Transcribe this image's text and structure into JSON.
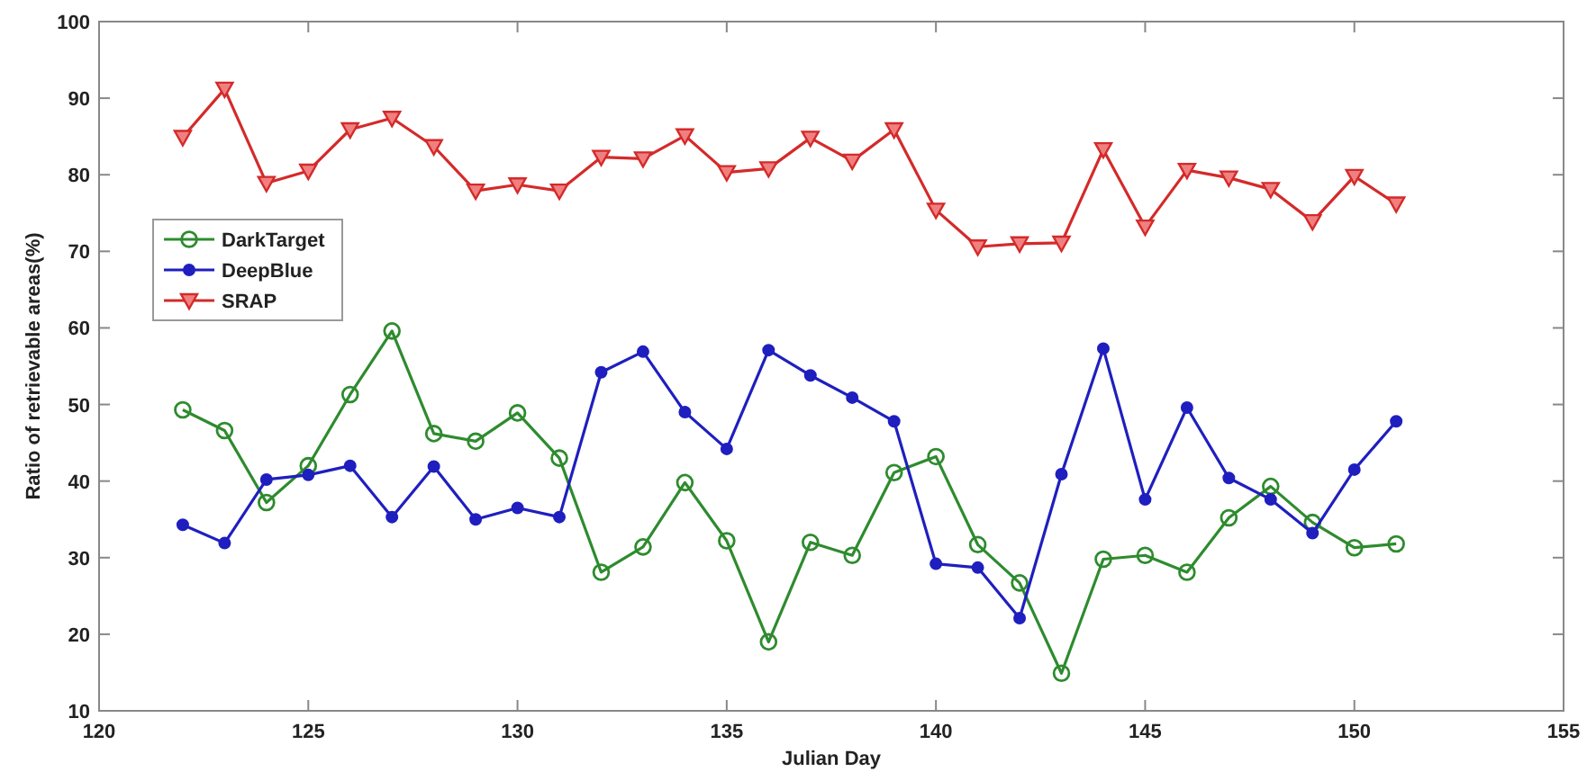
{
  "chart_data": {
    "type": "line",
    "xlabel": "Julian Day",
    "ylabel": "Ratio of retrievable areas(%)",
    "x": [
      122,
      123,
      124,
      125,
      126,
      127,
      128,
      129,
      130,
      131,
      132,
      133,
      134,
      135,
      136,
      137,
      138,
      139,
      140,
      141,
      142,
      143,
      144,
      145,
      146,
      147,
      148,
      149,
      150,
      151
    ],
    "xlim": [
      120,
      155
    ],
    "xticks": [
      120,
      125,
      130,
      135,
      140,
      145,
      150,
      155
    ],
    "ylim": [
      10,
      100
    ],
    "yticks": [
      10,
      20,
      30,
      40,
      50,
      60,
      70,
      80,
      90,
      100
    ],
    "grid": false,
    "legend": "left",
    "series": [
      {
        "name": "DarkTarget",
        "color": "#2e8b2e",
        "marker": "circle",
        "values": [
          49.3,
          46.6,
          37.2,
          42,
          51.3,
          59.6,
          46.2,
          45.2,
          48.9,
          43,
          28.1,
          31.4,
          39.8,
          32.2,
          19,
          32,
          30.3,
          41.1,
          43.2,
          31.7,
          26.7,
          14.9,
          29.8,
          30.3,
          28.1,
          35.2,
          39.3,
          34.6,
          31.3,
          31.8
        ]
      },
      {
        "name": "DeepBlue",
        "color": "#1f1fbf",
        "marker": "circle",
        "values": [
          34.3,
          31.9,
          40.2,
          40.8,
          42,
          35.3,
          41.9,
          35,
          36.5,
          35.3,
          54.2,
          56.9,
          49,
          44.2,
          57.1,
          53.8,
          50.9,
          47.8,
          29.2,
          28.7,
          22.1,
          40.9,
          57.3,
          37.6,
          49.6,
          40.4,
          37.6,
          33.2,
          41.5,
          47.8
        ]
      },
      {
        "name": "SRAP",
        "color": "#d42a2a",
        "marker": "triangle",
        "values": [
          84.9,
          91.2,
          78.9,
          80.5,
          85.9,
          87.4,
          83.7,
          77.9,
          78.7,
          77.9,
          82.3,
          82.1,
          85.1,
          80.3,
          80.8,
          84.8,
          81.8,
          85.9,
          75.4,
          70.6,
          71,
          71.1,
          83.3,
          73.2,
          80.6,
          79.6,
          78.1,
          73.9,
          79.8,
          76.2
        ]
      }
    ]
  }
}
